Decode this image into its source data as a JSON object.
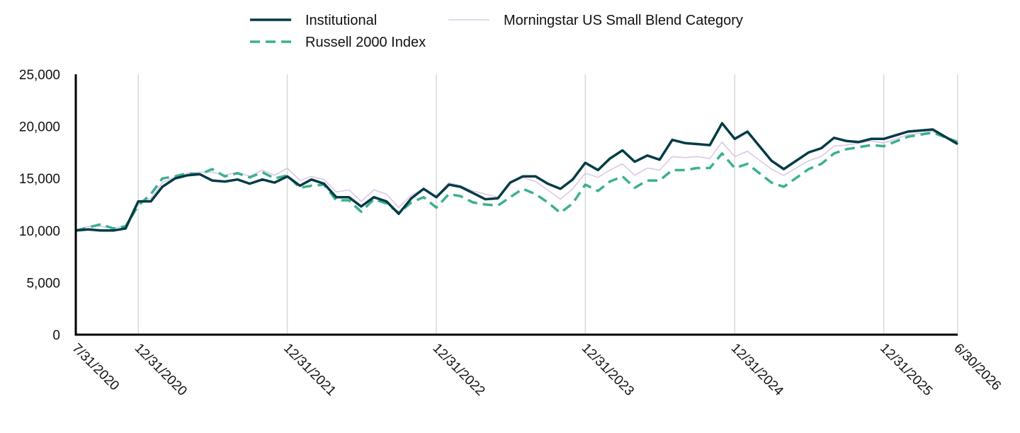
{
  "chart_data": {
    "type": "line",
    "title": "",
    "xlabel": "",
    "ylabel": "",
    "ylim": [
      0,
      25000
    ],
    "y_ticks": [
      0,
      5000,
      10000,
      15000,
      20000,
      25000
    ],
    "y_tick_labels": [
      "0",
      "5,000",
      "10,000",
      "15,000",
      "20,000",
      "25,000"
    ],
    "x_range": [
      "2020-07-31",
      "2026-06-30"
    ],
    "x_tick_labels": [
      "7/31/2020",
      "12/31/2020",
      "12/31/2021",
      "12/31/2022",
      "12/31/2023",
      "12/31/2024",
      "12/31/2025",
      "6/30/2026"
    ],
    "x_ticks": [
      "2020-07-31",
      "2020-12-31",
      "2021-12-31",
      "2022-12-31",
      "2023-12-31",
      "2024-12-31",
      "2025-12-31",
      "2026-06-30"
    ],
    "grid": "vertical",
    "legend_position": "top-center",
    "series": [
      {
        "name": "Institutional",
        "color": "#003b46",
        "style": "solid",
        "points": [
          [
            "2020-07-31",
            10000
          ],
          [
            "2020-08-31",
            10100
          ],
          [
            "2020-09-30",
            10000
          ],
          [
            "2020-10-31",
            10000
          ],
          [
            "2020-11-30",
            10200
          ],
          [
            "2020-12-31",
            12800
          ],
          [
            "2021-01-31",
            12800
          ],
          [
            "2021-02-28",
            14200
          ],
          [
            "2021-03-31",
            15000
          ],
          [
            "2021-04-30",
            15300
          ],
          [
            "2021-05-31",
            15400
          ],
          [
            "2021-06-30",
            14800
          ],
          [
            "2021-07-31",
            14700
          ],
          [
            "2021-08-31",
            14900
          ],
          [
            "2021-09-30",
            14500
          ],
          [
            "2021-10-31",
            14900
          ],
          [
            "2021-11-30",
            14600
          ],
          [
            "2021-12-31",
            15200
          ],
          [
            "2022-01-31",
            14300
          ],
          [
            "2022-02-28",
            14900
          ],
          [
            "2022-03-31",
            14500
          ],
          [
            "2022-04-30",
            13200
          ],
          [
            "2022-05-31",
            13200
          ],
          [
            "2022-06-30",
            12300
          ],
          [
            "2022-07-31",
            13200
          ],
          [
            "2022-08-31",
            12800
          ],
          [
            "2022-09-30",
            11600
          ],
          [
            "2022-10-31",
            13100
          ],
          [
            "2022-11-30",
            14000
          ],
          [
            "2022-12-31",
            13200
          ],
          [
            "2023-01-31",
            14400
          ],
          [
            "2023-02-28",
            14200
          ],
          [
            "2023-03-31",
            13600
          ],
          [
            "2023-04-30",
            13000
          ],
          [
            "2023-05-31",
            13100
          ],
          [
            "2023-06-30",
            14600
          ],
          [
            "2023-07-31",
            15200
          ],
          [
            "2023-08-31",
            15200
          ],
          [
            "2023-09-30",
            14500
          ],
          [
            "2023-10-31",
            14000
          ],
          [
            "2023-11-30",
            14900
          ],
          [
            "2023-12-31",
            16500
          ],
          [
            "2024-01-31",
            15800
          ],
          [
            "2024-02-29",
            16900
          ],
          [
            "2024-03-31",
            17700
          ],
          [
            "2024-04-30",
            16600
          ],
          [
            "2024-05-31",
            17200
          ],
          [
            "2024-06-30",
            16800
          ],
          [
            "2024-07-31",
            18700
          ],
          [
            "2024-08-31",
            18400
          ],
          [
            "2024-09-30",
            18300
          ],
          [
            "2024-10-31",
            18200
          ],
          [
            "2024-11-30",
            20300
          ],
          [
            "2024-12-31",
            18800
          ],
          [
            "2025-01-31",
            19500
          ],
          [
            "2025-03-31",
            16700
          ],
          [
            "2025-04-30",
            15900
          ],
          [
            "2025-06-30",
            17500
          ],
          [
            "2025-07-31",
            17900
          ],
          [
            "2025-08-31",
            18900
          ],
          [
            "2025-09-30",
            18600
          ],
          [
            "2025-10-31",
            18500
          ],
          [
            "2025-11-30",
            18800
          ],
          [
            "2025-12-31",
            18800
          ],
          [
            "2026-02-28",
            19500
          ],
          [
            "2026-04-30",
            19700
          ],
          [
            "2026-06-30",
            18300
          ]
        ]
      },
      {
        "name": "Russell 2000 Index",
        "color": "#3bb08f",
        "style": "dashed",
        "points": [
          [
            "2020-07-31",
            10000
          ],
          [
            "2020-08-31",
            10300
          ],
          [
            "2020-09-30",
            10600
          ],
          [
            "2020-10-31",
            10200
          ],
          [
            "2020-11-30",
            10400
          ],
          [
            "2020-12-31",
            12400
          ],
          [
            "2021-01-31",
            13500
          ],
          [
            "2021-02-28",
            15000
          ],
          [
            "2021-03-31",
            15200
          ],
          [
            "2021-04-30",
            15500
          ],
          [
            "2021-05-31",
            15400
          ],
          [
            "2021-06-30",
            15900
          ],
          [
            "2021-07-31",
            15200
          ],
          [
            "2021-08-31",
            15500
          ],
          [
            "2021-09-30",
            15100
          ],
          [
            "2021-10-31",
            15600
          ],
          [
            "2021-11-30",
            15000
          ],
          [
            "2021-12-31",
            15300
          ],
          [
            "2022-01-31",
            14100
          ],
          [
            "2022-02-28",
            14300
          ],
          [
            "2022-03-31",
            14400
          ],
          [
            "2022-04-30",
            12900
          ],
          [
            "2022-05-31",
            12900
          ],
          [
            "2022-06-30",
            11800
          ],
          [
            "2022-07-31",
            13000
          ],
          [
            "2022-08-31",
            12600
          ],
          [
            "2022-09-30",
            11700
          ],
          [
            "2022-10-31",
            12700
          ],
          [
            "2022-11-30",
            13200
          ],
          [
            "2022-12-31",
            12200
          ],
          [
            "2023-01-31",
            13500
          ],
          [
            "2023-02-28",
            13300
          ],
          [
            "2023-03-31",
            12700
          ],
          [
            "2023-04-30",
            12500
          ],
          [
            "2023-05-31",
            12400
          ],
          [
            "2023-06-30",
            13200
          ],
          [
            "2023-07-31",
            14000
          ],
          [
            "2023-08-31",
            13500
          ],
          [
            "2023-09-30",
            12700
          ],
          [
            "2023-10-31",
            11700
          ],
          [
            "2023-11-30",
            12600
          ],
          [
            "2023-12-31",
            14400
          ],
          [
            "2024-01-31",
            13800
          ],
          [
            "2024-02-29",
            14700
          ],
          [
            "2024-03-31",
            15200
          ],
          [
            "2024-04-30",
            14100
          ],
          [
            "2024-05-31",
            14800
          ],
          [
            "2024-06-30",
            14800
          ],
          [
            "2024-07-31",
            15800
          ],
          [
            "2024-08-31",
            15800
          ],
          [
            "2024-09-30",
            16000
          ],
          [
            "2024-10-31",
            16000
          ],
          [
            "2024-11-30",
            17400
          ],
          [
            "2024-12-31",
            16000
          ],
          [
            "2025-01-31",
            16400
          ],
          [
            "2025-03-31",
            14600
          ],
          [
            "2025-04-30",
            14200
          ],
          [
            "2025-06-30",
            15900
          ],
          [
            "2025-07-31",
            16400
          ],
          [
            "2025-08-31",
            17400
          ],
          [
            "2025-09-30",
            17800
          ],
          [
            "2025-10-31",
            18000
          ],
          [
            "2025-11-30",
            18200
          ],
          [
            "2025-12-31",
            18100
          ],
          [
            "2026-02-28",
            19000
          ],
          [
            "2026-04-30",
            19400
          ],
          [
            "2026-06-30",
            18500
          ]
        ]
      },
      {
        "name": "Morningstar US Small Blend Category",
        "color": "#dcc8e6",
        "style": "solid-thin",
        "points": [
          [
            "2020-07-31",
            10000
          ],
          [
            "2020-08-31",
            10400
          ],
          [
            "2020-09-30",
            10400
          ],
          [
            "2020-10-31",
            10200
          ],
          [
            "2020-11-30",
            10500
          ],
          [
            "2020-12-31",
            12700
          ],
          [
            "2021-01-31",
            13100
          ],
          [
            "2021-02-28",
            14600
          ],
          [
            "2021-03-31",
            15100
          ],
          [
            "2021-04-30",
            15500
          ],
          [
            "2021-05-31",
            15600
          ],
          [
            "2021-06-30",
            15600
          ],
          [
            "2021-07-31",
            15300
          ],
          [
            "2021-08-31",
            15600
          ],
          [
            "2021-09-30",
            15200
          ],
          [
            "2021-10-31",
            15800
          ],
          [
            "2021-11-30",
            15300
          ],
          [
            "2021-12-31",
            16000
          ],
          [
            "2022-01-31",
            14800
          ],
          [
            "2022-02-28",
            15200
          ],
          [
            "2022-03-31",
            14900
          ],
          [
            "2022-04-30",
            13700
          ],
          [
            "2022-05-31",
            13900
          ],
          [
            "2022-06-30",
            12800
          ],
          [
            "2022-07-31",
            13900
          ],
          [
            "2022-08-31",
            13500
          ],
          [
            "2022-09-30",
            12200
          ],
          [
            "2022-10-31",
            13400
          ],
          [
            "2022-11-30",
            14000
          ],
          [
            "2022-12-31",
            13300
          ],
          [
            "2023-01-31",
            14600
          ],
          [
            "2023-02-28",
            14300
          ],
          [
            "2023-03-31",
            13800
          ],
          [
            "2023-04-30",
            13500
          ],
          [
            "2023-05-31",
            13200
          ],
          [
            "2023-06-30",
            14700
          ],
          [
            "2023-07-31",
            15100
          ],
          [
            "2023-08-31",
            14700
          ],
          [
            "2023-09-30",
            13900
          ],
          [
            "2023-10-31",
            13000
          ],
          [
            "2023-11-30",
            14000
          ],
          [
            "2023-12-31",
            15500
          ],
          [
            "2024-01-31",
            15100
          ],
          [
            "2024-02-29",
            15800
          ],
          [
            "2024-03-31",
            16400
          ],
          [
            "2024-04-30",
            15300
          ],
          [
            "2024-05-31",
            16000
          ],
          [
            "2024-06-30",
            15800
          ],
          [
            "2024-07-31",
            17100
          ],
          [
            "2024-08-31",
            17000
          ],
          [
            "2024-09-30",
            17100
          ],
          [
            "2024-10-31",
            16900
          ],
          [
            "2024-11-30",
            18500
          ],
          [
            "2024-12-31",
            17100
          ],
          [
            "2025-01-31",
            17600
          ],
          [
            "2025-03-31",
            15900
          ],
          [
            "2025-04-30",
            15300
          ],
          [
            "2025-06-30",
            16700
          ],
          [
            "2025-07-31",
            17100
          ],
          [
            "2025-08-31",
            18100
          ],
          [
            "2025-09-30",
            18200
          ],
          [
            "2025-10-31",
            18400
          ],
          [
            "2025-11-30",
            18600
          ],
          [
            "2025-12-31",
            18400
          ],
          [
            "2026-02-28",
            19200
          ],
          [
            "2026-04-30",
            19500
          ],
          [
            "2026-06-30",
            18600
          ]
        ]
      }
    ]
  }
}
